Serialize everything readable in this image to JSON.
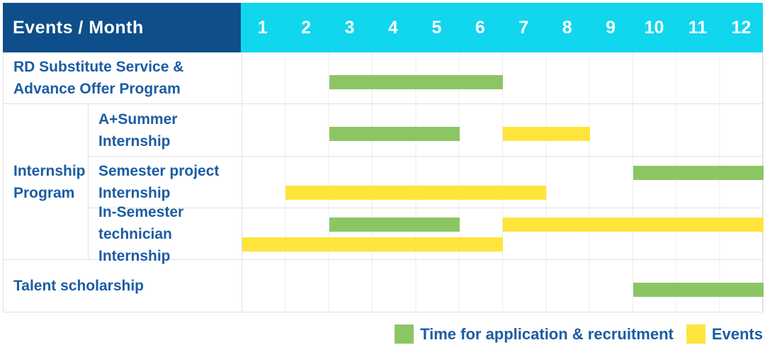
{
  "colors": {
    "navy": "#0e4e8a",
    "cyan": "#10d6ee",
    "green": "#8cc664",
    "yellow": "#ffe43c",
    "label_blue": "#1c5ca3"
  },
  "header": {
    "label": "Events / Month",
    "months": [
      "1",
      "2",
      "3",
      "4",
      "5",
      "6",
      "7",
      "8",
      "9",
      "10",
      "11",
      "12"
    ]
  },
  "body": {
    "group_label": [
      "Internship",
      "Program"
    ],
    "rows": [
      {
        "kind": "full",
        "label": [
          "RD Substitute Service &",
          "Advance Offer Program"
        ],
        "bars": [
          {
            "color": "green",
            "start": 3,
            "end": 6,
            "line": "single"
          }
        ]
      },
      {
        "kind": "sub",
        "label": [
          "A+Summer",
          "Internship"
        ],
        "bars": [
          {
            "color": "green",
            "start": 3,
            "end": 5,
            "line": "single"
          },
          {
            "color": "yellow",
            "start": 7,
            "end": 8,
            "line": "single"
          }
        ]
      },
      {
        "kind": "sub",
        "label": [
          "Semester project",
          "Internship"
        ],
        "bars": [
          {
            "color": "green",
            "start": 10,
            "end": 12,
            "line": "top"
          },
          {
            "color": "yellow",
            "start": 2,
            "end": 7,
            "line": "bottom"
          }
        ]
      },
      {
        "kind": "sub",
        "label": [
          "In-Semester",
          "technician Internship"
        ],
        "bars": [
          {
            "color": "green",
            "start": 3,
            "end": 5,
            "line": "top"
          },
          {
            "color": "yellow",
            "start": 7,
            "end": 12,
            "line": "top"
          },
          {
            "color": "yellow",
            "start": 1,
            "end": 6,
            "line": "bottom"
          }
        ]
      },
      {
        "kind": "full",
        "label": [
          "Talent scholarship"
        ],
        "bars": [
          {
            "color": "green",
            "start": 10,
            "end": 12,
            "line": "single"
          }
        ]
      }
    ]
  },
  "legend": [
    {
      "color": "green",
      "label": "Time for application & recruitment"
    },
    {
      "color": "yellow",
      "label": "Events"
    }
  ],
  "chart_data": {
    "type": "bar",
    "subtype": "gantt",
    "title": "Events / Month",
    "xlabel": "Month",
    "x_ticks": [
      1,
      2,
      3,
      4,
      5,
      6,
      7,
      8,
      9,
      10,
      11,
      12
    ],
    "xlim": [
      1,
      12
    ],
    "grid": true,
    "legend_position": "bottom-right",
    "legend": [
      {
        "label": "Time for application & recruitment",
        "color": "#8cc664"
      },
      {
        "label": "Events",
        "color": "#ffe43c"
      }
    ],
    "tasks": [
      {
        "name": "RD Substitute Service & Advance Offer Program",
        "group": null,
        "bars": [
          {
            "kind": "application",
            "start_month": 3,
            "end_month": 6
          }
        ]
      },
      {
        "name": "A+Summer Internship",
        "group": "Internship Program",
        "bars": [
          {
            "kind": "application",
            "start_month": 3,
            "end_month": 5
          },
          {
            "kind": "event",
            "start_month": 7,
            "end_month": 8
          }
        ]
      },
      {
        "name": "Semester project Internship",
        "group": "Internship Program",
        "bars": [
          {
            "kind": "application",
            "start_month": 10,
            "end_month": 12
          },
          {
            "kind": "event",
            "start_month": 2,
            "end_month": 7
          }
        ]
      },
      {
        "name": "In-Semester technician Internship",
        "group": "Internship Program",
        "bars": [
          {
            "kind": "application",
            "start_month": 3,
            "end_month": 5
          },
          {
            "kind": "event",
            "start_month": 7,
            "end_month": 12
          },
          {
            "kind": "event",
            "start_month": 1,
            "end_month": 6
          }
        ]
      },
      {
        "name": "Talent scholarship",
        "group": null,
        "bars": [
          {
            "kind": "application",
            "start_month": 10,
            "end_month": 12
          }
        ]
      }
    ]
  }
}
